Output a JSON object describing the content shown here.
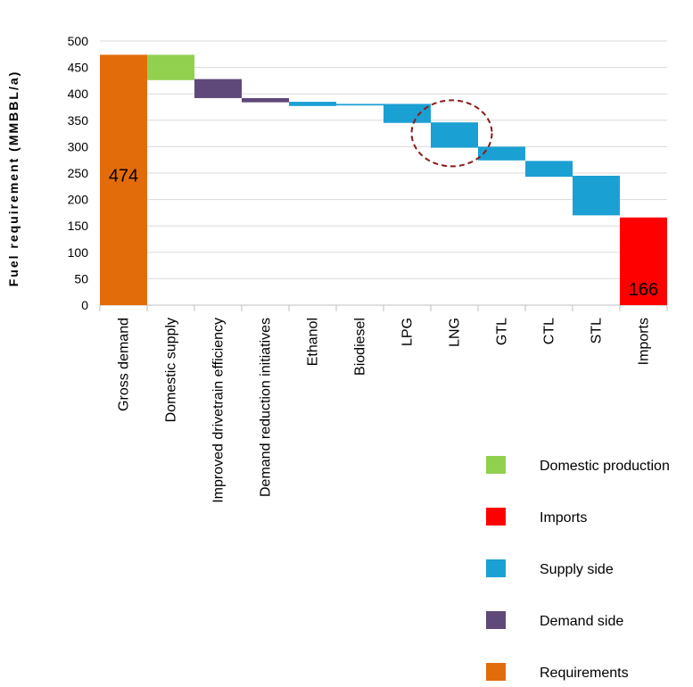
{
  "chart_data": {
    "type": "bar",
    "subtype": "waterfall",
    "title": "",
    "ylabel": "Fuel requirement (MMBBL/a)",
    "xlabel": "",
    "ylim": [
      0,
      500
    ],
    "yticks": [
      0,
      50,
      100,
      150,
      200,
      250,
      300,
      350,
      400,
      450,
      500
    ],
    "grid": true,
    "legend_position": "bottom-right",
    "categories": [
      "Gross demand",
      "Domestic supply",
      "Improved drivetrain efficiency",
      "Demand reduction initiatives",
      "Ethanol",
      "Biodiesel",
      "LPG",
      "LNG",
      "GTL",
      "CTL",
      "STL",
      "Imports"
    ],
    "bars": [
      {
        "category": "Gross demand",
        "low": 0,
        "high": 474,
        "series": "Requirements",
        "label": "474"
      },
      {
        "category": "Domestic supply",
        "low": 426,
        "high": 474,
        "series": "Domestic production",
        "label": ""
      },
      {
        "category": "Improved drivetrain efficiency",
        "low": 392,
        "high": 428,
        "series": "Demand side",
        "label": ""
      },
      {
        "category": "Demand reduction initiatives",
        "low": 384,
        "high": 392,
        "series": "Demand side",
        "label": ""
      },
      {
        "category": "Ethanol",
        "low": 377,
        "high": 385,
        "series": "Supply side",
        "label": ""
      },
      {
        "category": "Biodiesel",
        "low": 378,
        "high": 381,
        "series": "Supply side",
        "label": ""
      },
      {
        "category": "LPG",
        "low": 345,
        "high": 381,
        "series": "Supply side",
        "label": ""
      },
      {
        "category": "LNG",
        "low": 298,
        "high": 346,
        "series": "Supply side",
        "label": ""
      },
      {
        "category": "GTL",
        "low": 274,
        "high": 300,
        "series": "Supply side",
        "label": ""
      },
      {
        "category": "CTL",
        "low": 243,
        "high": 273,
        "series": "Supply side",
        "label": ""
      },
      {
        "category": "STL",
        "low": 170,
        "high": 245,
        "series": "Supply side",
        "label": ""
      },
      {
        "category": "Imports",
        "low": 0,
        "high": 166,
        "series": "Imports",
        "label": "166"
      }
    ],
    "highlight": {
      "category": "LNG",
      "shape": "dashed-ellipse",
      "color": "#8B1A1A"
    },
    "legend": [
      {
        "name": "Domestic production",
        "color": "#92D050"
      },
      {
        "name": "Imports",
        "color": "#FF0000"
      },
      {
        "name": "Supply side",
        "color": "#1BA0D4"
      },
      {
        "name": "Demand side",
        "color": "#5F497A"
      },
      {
        "name": "Requirements",
        "color": "#E36C0A"
      }
    ],
    "colors": {
      "Requirements": "#E36C0A",
      "Domestic production": "#92D050",
      "Demand side": "#5F497A",
      "Supply side": "#1BA0D4",
      "Imports": "#FF0000",
      "grid": "#d9d9d9",
      "axis": "#bfbfbf"
    }
  }
}
